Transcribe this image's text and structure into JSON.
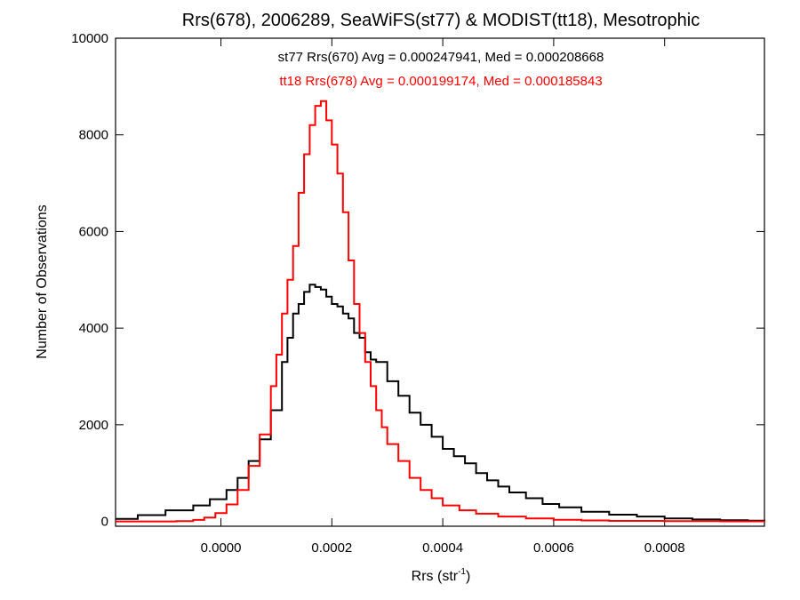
{
  "chart_data": {
    "type": "line",
    "title": "Rrs(678), 2006289, SeaWiFS(st77) & MODIST(tt18), Mesotrophic",
    "xlabel": "Rrs (str",
    "xlabel_superscript": "-1",
    "xlabel_suffix": ")",
    "ylabel": "Number of Observations",
    "xlim": [
      -0.00019,
      0.00098
    ],
    "ylim": [
      -100,
      10000
    ],
    "xticks": [
      {
        "value": 0.0,
        "label": "0.0000"
      },
      {
        "value": 0.0002,
        "label": "0.0002"
      },
      {
        "value": 0.0004,
        "label": "0.0004"
      },
      {
        "value": 0.0006,
        "label": "0.0006"
      },
      {
        "value": 0.0008,
        "label": "0.0008"
      }
    ],
    "yticks": [
      {
        "value": 0,
        "label": "0"
      },
      {
        "value": 2000,
        "label": "2000"
      },
      {
        "value": 4000,
        "label": "4000"
      },
      {
        "value": 6000,
        "label": "6000"
      },
      {
        "value": 8000,
        "label": "8000"
      },
      {
        "value": 10000,
        "label": "10000"
      }
    ],
    "grid": false,
    "legend_position": "top-center",
    "series": [
      {
        "name": "st77 Rrs(670) Avg = 0.000247941, Med = 0.000208668",
        "color": "#000000",
        "style": "histogram-step",
        "x": [
          -0.00019,
          -0.00015,
          -0.0001,
          -5e-05,
          -2e-05,
          1e-05,
          3e-05,
          5e-05,
          7e-05,
          9e-05,
          0.00011,
          0.00012,
          0.00013,
          0.00014,
          0.00015,
          0.00016,
          0.00017,
          0.00018,
          0.00019,
          0.0002,
          0.00021,
          0.00022,
          0.00023,
          0.00024,
          0.00025,
          0.00026,
          0.00027,
          0.00028,
          0.0003,
          0.00032,
          0.00034,
          0.00036,
          0.00038,
          0.0004,
          0.00042,
          0.00044,
          0.00046,
          0.00048,
          0.0005,
          0.00052,
          0.00055,
          0.00058,
          0.00061,
          0.00065,
          0.0007,
          0.00075,
          0.0008,
          0.00085,
          0.0009,
          0.00095,
          0.00098
        ],
        "values": [
          50,
          130,
          230,
          330,
          460,
          650,
          900,
          1250,
          1700,
          2300,
          3300,
          3800,
          4300,
          4500,
          4750,
          4900,
          4850,
          4800,
          4650,
          4500,
          4450,
          4300,
          4200,
          3900,
          3800,
          3500,
          3350,
          3300,
          2900,
          2600,
          2250,
          2000,
          1750,
          1500,
          1350,
          1200,
          1000,
          850,
          720,
          600,
          480,
          360,
          290,
          200,
          140,
          100,
          60,
          40,
          25,
          15,
          10
        ]
      },
      {
        "name": "tt18 Rrs(678) Avg = 0.000199174, Med = 0.000185843",
        "color": "#ff0000",
        "style": "histogram-step",
        "x": [
          -0.00019,
          -0.00012,
          -8e-05,
          -5e-05,
          -3e-05,
          -1e-05,
          1e-05,
          3e-05,
          5e-05,
          7e-05,
          9e-05,
          0.0001,
          0.00011,
          0.00012,
          0.00013,
          0.00014,
          0.00015,
          0.00016,
          0.00017,
          0.00018,
          0.00019,
          0.0002,
          0.00021,
          0.00022,
          0.00023,
          0.00024,
          0.00025,
          0.00026,
          0.00027,
          0.00028,
          0.00029,
          0.0003,
          0.00032,
          0.00034,
          0.00036,
          0.00038,
          0.0004,
          0.00043,
          0.00046,
          0.0005,
          0.00055,
          0.0006,
          0.00065,
          0.0007,
          0.0008,
          0.0009,
          0.00098
        ],
        "values": [
          0,
          0,
          5,
          30,
          80,
          170,
          350,
          650,
          1150,
          1800,
          2800,
          3450,
          4300,
          5000,
          5700,
          6800,
          7600,
          8200,
          8600,
          8700,
          8300,
          7800,
          7200,
          6400,
          5400,
          4500,
          3900,
          3300,
          2800,
          2300,
          1950,
          1600,
          1250,
          900,
          650,
          480,
          330,
          230,
          160,
          100,
          60,
          35,
          20,
          10,
          5,
          2,
          0
        ]
      }
    ]
  }
}
